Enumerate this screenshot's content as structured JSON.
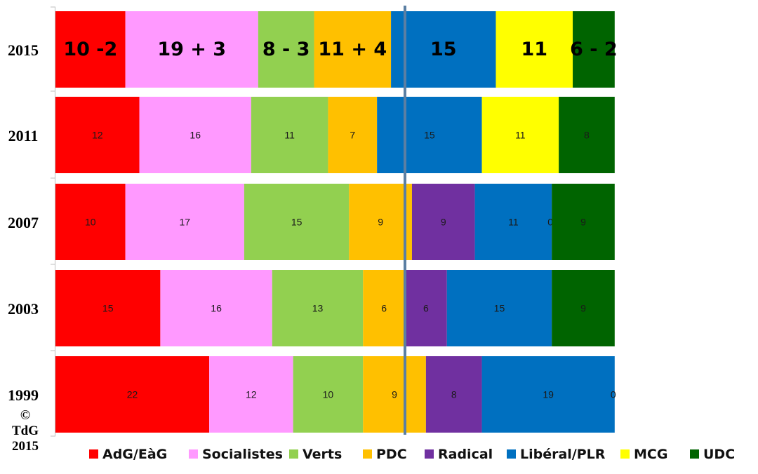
{
  "chart_data": {
    "type": "bar",
    "orientation": "horizontal",
    "stacked": true,
    "legend_position": "bottom",
    "categories": [
      "2015",
      "2011",
      "2007",
      "2003",
      "1999"
    ],
    "series": [
      {
        "name": "AdG/EàG",
        "color": "#ff0000",
        "values": [
          10,
          12,
          10,
          15,
          22
        ],
        "labels": [
          "10 -2",
          "12",
          "10",
          "15",
          "22"
        ]
      },
      {
        "name": "Socialistes",
        "color": "#ff99ff",
        "values": [
          19,
          16,
          17,
          16,
          12
        ],
        "labels": [
          "19 + 3",
          "16",
          "17",
          "16",
          "12"
        ]
      },
      {
        "name": "Verts",
        "color": "#92d050",
        "values": [
          8,
          11,
          15,
          13,
          10
        ],
        "labels": [
          "8 - 3",
          "11",
          "15",
          "13",
          "10"
        ]
      },
      {
        "name": "PDC",
        "color": "#ffc000",
        "values": [
          11,
          7,
          9,
          6,
          9
        ],
        "labels": [
          "11 + 4",
          "7",
          "9",
          "6",
          "9"
        ]
      },
      {
        "name": "Radical",
        "color": "#7030a0",
        "values": [
          0,
          0,
          9,
          6,
          8
        ],
        "labels": [
          "",
          "",
          "9",
          "6",
          "8"
        ]
      },
      {
        "name": "Libéral/PLR",
        "color": "#0070c0",
        "values": [
          15,
          15,
          11,
          15,
          19
        ],
        "labels": [
          "15",
          "15",
          "11",
          "15",
          "19"
        ]
      },
      {
        "name": "MCG",
        "color": "#ffff00",
        "values": [
          11,
          11,
          0,
          0,
          0
        ],
        "labels": [
          "11",
          "11",
          "0",
          "",
          "0"
        ]
      },
      {
        "name": "UDC",
        "color": "#006400",
        "values": [
          6,
          8,
          9,
          9,
          0
        ],
        "labels": [
          "6 - 2",
          "8",
          "9",
          "9",
          ""
        ]
      }
    ],
    "majority_line": 50,
    "majority_line_color": "#5b7fa3",
    "xlim": [
      0,
      100
    ]
  },
  "copyright": {
    "symbol": "©",
    "owner": "TdG",
    "year": "2015"
  }
}
